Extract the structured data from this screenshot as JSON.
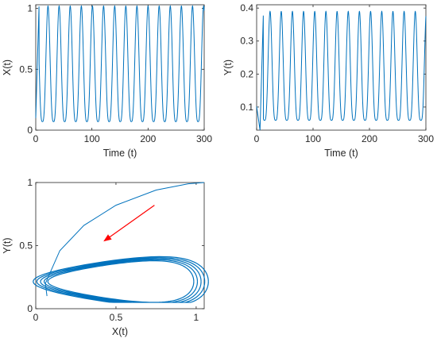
{
  "colors": {
    "series": "#0072BD",
    "arrow": "#FF0000",
    "axis": "#262626"
  },
  "chart_data": [
    {
      "type": "line",
      "xlabel": "Time (t)",
      "ylabel": "X(t)",
      "xlim": [
        0,
        300
      ],
      "ylim": [
        0,
        1.03
      ],
      "xticks": [
        0,
        100,
        200,
        300
      ],
      "yticks": [
        0,
        0.5,
        1
      ],
      "xtick_labels": [
        "0",
        "100",
        "200",
        "300"
      ],
      "ytick_labels": [
        "0",
        "0.5",
        "1"
      ],
      "grid": false,
      "series": [
        {
          "period": 19.8,
          "peaks": 17,
          "max": 1.02,
          "min": 0.07,
          "initial_max": 1.05
        }
      ]
    },
    {
      "type": "line",
      "xlabel": "Time (t)",
      "ylabel": "Y(t)",
      "xlim": [
        0,
        300
      ],
      "ylim": [
        0.03,
        0.41
      ],
      "xticks": [
        0,
        100,
        200,
        300
      ],
      "yticks": [
        0.1,
        0.2,
        0.3,
        0.4
      ],
      "xtick_labels": [
        "0",
        "100",
        "200",
        "300"
      ],
      "ytick_labels": [
        "0.1",
        "0.2",
        "0.3",
        "0.4"
      ],
      "grid": false,
      "series": [
        {
          "period": 19.8,
          "peaks": 17,
          "max": 0.39,
          "min": 0.06,
          "initial_min": 0.03
        }
      ]
    },
    {
      "type": "line",
      "xlabel": "X(t)",
      "ylabel": "Y(t)",
      "xlim": [
        0,
        1.05
      ],
      "ylim": [
        0,
        1.0
      ],
      "xticks": [
        0,
        0.5,
        1
      ],
      "yticks": [
        0,
        0.5,
        1
      ],
      "xtick_labels": [
        "0",
        "0.5",
        "1"
      ],
      "ytick_labels": [
        "0",
        "0.5",
        "1"
      ],
      "grid": false,
      "phase_portrait": true,
      "transient": [
        [
          1.05,
          1.0
        ],
        [
          0.95,
          0.99
        ],
        [
          0.75,
          0.94
        ],
        [
          0.5,
          0.82
        ],
        [
          0.3,
          0.66
        ],
        [
          0.15,
          0.46
        ],
        [
          0.06,
          0.2
        ],
        [
          0.07,
          0.1
        ]
      ],
      "limit_cycle": {
        "center": [
          0.53,
          0.215
        ],
        "x_radius": 0.455,
        "y_radius": 0.16,
        "x_min": 0.08,
        "x_max": 0.98,
        "y_min": 0.055,
        "y_max": 0.38
      },
      "arrow": {
        "from": [
          0.74,
          0.82
        ],
        "to": [
          0.43,
          0.54
        ]
      }
    }
  ]
}
